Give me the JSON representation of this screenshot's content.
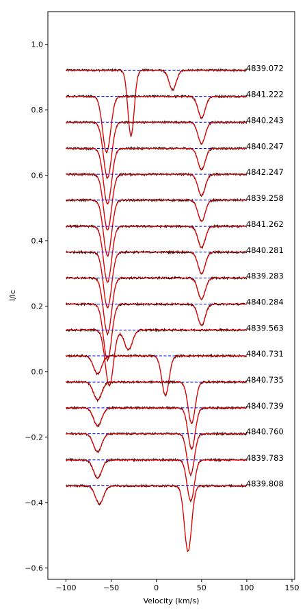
{
  "chart_data": {
    "type": "line",
    "title": "",
    "xlabel": "Velocity (km/s)",
    "ylabel": "I/Ic",
    "xlim": [
      -120,
      153
    ],
    "ylim": [
      -0.635,
      1.1
    ],
    "xticks": [
      -100,
      -50,
      0,
      50,
      100,
      150
    ],
    "yticks": [
      -0.6,
      -0.4,
      -0.2,
      0.0,
      0.2,
      0.4,
      0.6,
      0.8,
      1.0
    ],
    "xtick_labels": [
      "−100",
      "−50",
      "0",
      "50",
      "100",
      "150"
    ],
    "ytick_labels": [
      "−0.6",
      "−0.4",
      "−0.2",
      "0.0",
      "0.2",
      "0.4",
      "0.6",
      "0.8",
      "1.0"
    ],
    "velocity_range": [
      -100,
      100
    ],
    "grid": false,
    "legend": "none",
    "colors": {
      "observed": "#000000",
      "model": "#ff0000",
      "continuum": "#0000ff"
    },
    "series": [
      {
        "label": "4839.072",
        "continuum": 0.921,
        "lines": [
          {
            "center": -28,
            "depth": 0.2,
            "sigma": 3.5
          },
          {
            "center": 18,
            "depth": 0.06,
            "sigma": 4
          }
        ]
      },
      {
        "label": "4841.222",
        "continuum": 0.841,
        "lines": [
          {
            "center": -55,
            "depth": 0.17,
            "sigma": 4.5
          },
          {
            "center": 50,
            "depth": 0.065,
            "sigma": 4
          }
        ]
      },
      {
        "label": "4840.243",
        "continuum": 0.762,
        "lines": [
          {
            "center": -54,
            "depth": 0.17,
            "sigma": 4.5
          },
          {
            "center": 50,
            "depth": 0.065,
            "sigma": 4
          }
        ]
      },
      {
        "label": "4840.247",
        "continuum": 0.682,
        "lines": [
          {
            "center": -54,
            "depth": 0.17,
            "sigma": 4.5
          },
          {
            "center": 50,
            "depth": 0.065,
            "sigma": 4
          }
        ]
      },
      {
        "label": "4842.247",
        "continuum": 0.603,
        "lines": [
          {
            "center": -54,
            "depth": 0.17,
            "sigma": 4.5
          },
          {
            "center": 50,
            "depth": 0.065,
            "sigma": 4
          }
        ]
      },
      {
        "label": "4839.258",
        "continuum": 0.524,
        "lines": [
          {
            "center": -54,
            "depth": 0.17,
            "sigma": 4.5
          },
          {
            "center": 50,
            "depth": 0.065,
            "sigma": 4
          }
        ]
      },
      {
        "label": "4841.262",
        "continuum": 0.444,
        "lines": [
          {
            "center": -54,
            "depth": 0.17,
            "sigma": 4.5
          },
          {
            "center": 50,
            "depth": 0.065,
            "sigma": 4
          }
        ]
      },
      {
        "label": "4840.281",
        "continuum": 0.365,
        "lines": [
          {
            "center": -54,
            "depth": 0.17,
            "sigma": 4.5
          },
          {
            "center": 50,
            "depth": 0.065,
            "sigma": 4
          }
        ]
      },
      {
        "label": "4839.283",
        "continuum": 0.286,
        "lines": [
          {
            "center": -54,
            "depth": 0.17,
            "sigma": 4.5
          },
          {
            "center": 50,
            "depth": 0.065,
            "sigma": 4
          }
        ]
      },
      {
        "label": "4840.284",
        "continuum": 0.206,
        "lines": [
          {
            "center": -54,
            "depth": 0.17,
            "sigma": 4.5
          },
          {
            "center": 50,
            "depth": 0.065,
            "sigma": 4
          }
        ]
      },
      {
        "label": "4839.563",
        "continuum": 0.127,
        "lines": [
          {
            "center": -52,
            "depth": 0.17,
            "sigma": 4.5
          },
          {
            "center": -31,
            "depth": 0.06,
            "sigma": 4.5
          }
        ]
      },
      {
        "label": "4840.731",
        "continuum": 0.048,
        "lines": [
          {
            "center": -65,
            "depth": 0.055,
            "sigma": 4.5
          },
          {
            "center": 10,
            "depth": 0.12,
            "sigma": 4
          }
        ]
      },
      {
        "label": "4840.735",
        "continuum": -0.032,
        "lines": [
          {
            "center": -65,
            "depth": 0.055,
            "sigma": 4.5
          },
          {
            "center": 39,
            "depth": 0.125,
            "sigma": 4
          }
        ]
      },
      {
        "label": "4840.739",
        "continuum": -0.111,
        "lines": [
          {
            "center": -65,
            "depth": 0.055,
            "sigma": 4.5
          },
          {
            "center": 39,
            "depth": 0.125,
            "sigma": 4
          }
        ]
      },
      {
        "label": "4840.760",
        "continuum": -0.19,
        "lines": [
          {
            "center": -65,
            "depth": 0.055,
            "sigma": 4.5
          },
          {
            "center": 38,
            "depth": 0.125,
            "sigma": 4
          }
        ]
      },
      {
        "label": "4839.783",
        "continuum": -0.27,
        "lines": [
          {
            "center": -65,
            "depth": 0.055,
            "sigma": 4.5
          },
          {
            "center": 38,
            "depth": 0.125,
            "sigma": 4
          }
        ]
      },
      {
        "label": "4839.808",
        "continuum": -0.349,
        "lines": [
          {
            "center": -63,
            "depth": 0.055,
            "sigma": 4.5
          },
          {
            "center": 35,
            "depth": 0.2,
            "sigma": 4
          }
        ]
      }
    ]
  }
}
